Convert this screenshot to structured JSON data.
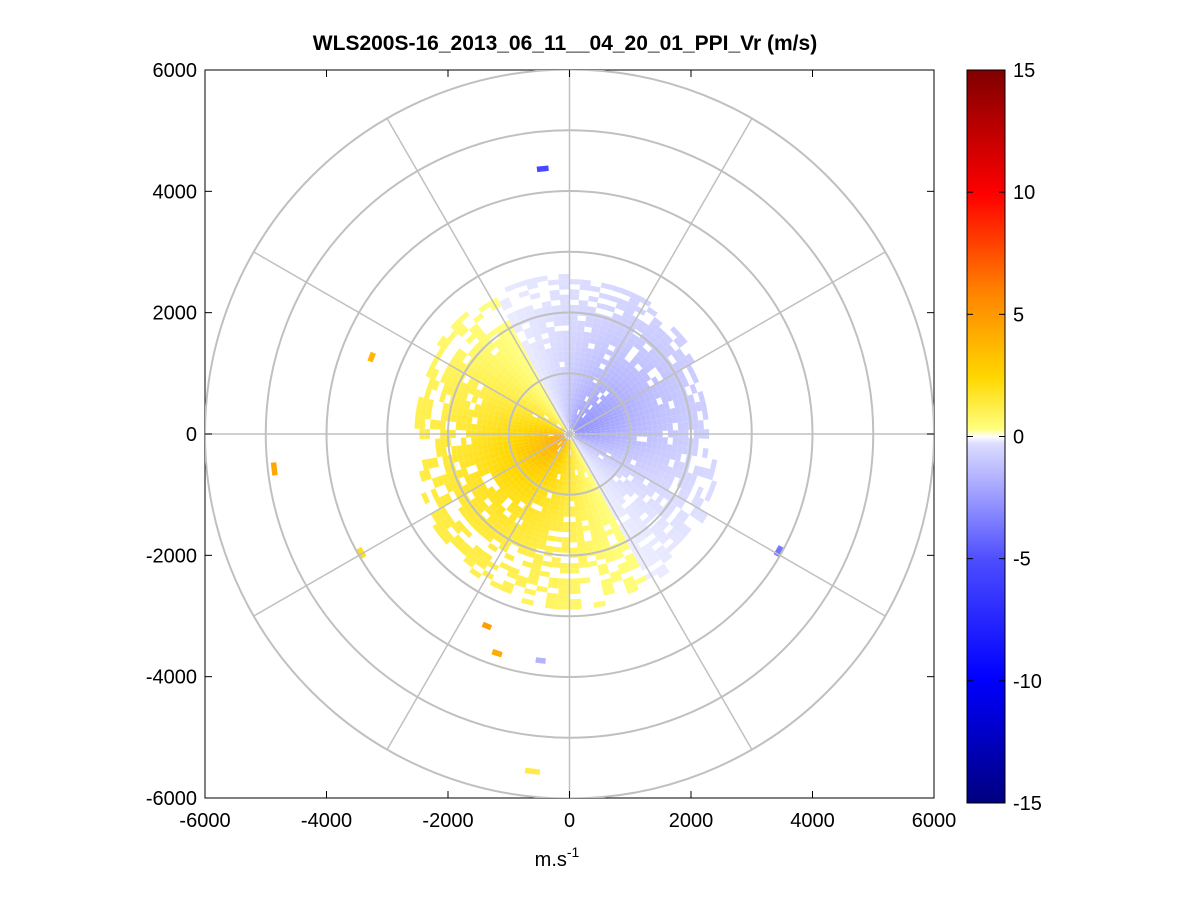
{
  "chart_data": {
    "type": "heatmap",
    "subtype": "polar-ppi",
    "title": "WLS200S-16_2013_06_11__04_20_01_PPI_Vr (m/s)",
    "xlabel_base": "m.s",
    "xlabel_exp": "-1",
    "xlim": [
      -6000,
      6000
    ],
    "ylim": [
      -6000,
      6000
    ],
    "xticks": [
      -6000,
      -4000,
      -2000,
      0,
      2000,
      4000,
      6000
    ],
    "yticks": [
      -6000,
      -4000,
      -2000,
      0,
      2000,
      4000,
      6000
    ],
    "xtick_labels": [
      "-6000",
      "-4000",
      "-2000",
      "0",
      "2000",
      "4000",
      "6000"
    ],
    "ytick_labels": [
      "-6000",
      "-4000",
      "-2000",
      "0",
      "2000",
      "4000",
      "6000"
    ],
    "range_rings": [
      1000,
      2000,
      3000,
      4000,
      5000,
      6000
    ],
    "spoke_angles_deg": [
      0,
      30,
      60,
      90,
      120,
      150,
      180,
      210,
      240,
      270,
      300,
      330
    ],
    "colorbar": {
      "range": [
        -15,
        15
      ],
      "ticks": [
        -15,
        -10,
        -5,
        0,
        5,
        10,
        15
      ],
      "tick_labels": [
        "-15",
        "-10",
        "-5",
        "0",
        "5",
        "10",
        "15"
      ],
      "colors": {
        "min": "#000080",
        "neg_mid": "#0000ff",
        "zero_neg": "#ecedff",
        "zero_pos": "#ffff80",
        "pos_low": "#ffd700",
        "pos_mid": "#ff0000",
        "max": "#800000"
      }
    },
    "wind_field": {
      "description_units": "m/s radial velocity",
      "toward_deg": 60,
      "max_speed": 4.2,
      "max_range_m": 3100,
      "patches": [
        {
          "r": 4350,
          "az": 353,
          "vr": -7.0
        },
        {
          "r": 5550,
          "az": 185,
          "vr": 1.2
        },
        {
          "r": 3760,
          "az": 197,
          "vr": 4.0
        },
        {
          "r": 4850,
          "az": 262,
          "vr": 4.2
        },
        {
          "r": 3900,
          "az": 239,
          "vr": 2.0
        },
        {
          "r": 3720,
          "az": 186,
          "vr": -2.4
        },
        {
          "r": 3900,
          "az": 118,
          "vr": -5.0
        },
        {
          "r": 3450,
          "az": 290,
          "vr": 3.6
        },
        {
          "r": 3400,
          "az": 202,
          "vr": 4.5
        }
      ]
    }
  }
}
